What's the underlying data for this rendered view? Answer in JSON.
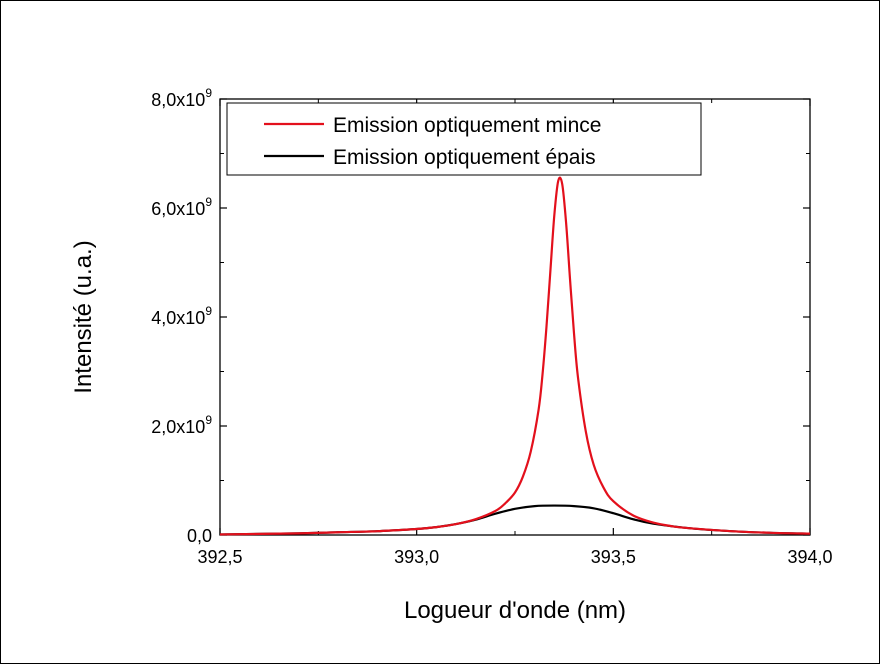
{
  "chart_data": {
    "type": "line",
    "title": "",
    "xlabel": "Logueur d'onde (nm)",
    "ylabel": "Intensité (u.a.)",
    "xlim": [
      392.5,
      394.0
    ],
    "ylim": [
      0,
      8000000000
    ],
    "grid": false,
    "legend_position": "top-left",
    "x_ticks": [
      {
        "value": 392.5,
        "label": "392,5"
      },
      {
        "value": 393.0,
        "label": "393,0"
      },
      {
        "value": 393.5,
        "label": "393,5"
      },
      {
        "value": 394.0,
        "label": "394,0"
      }
    ],
    "y_ticks": [
      {
        "value": 0,
        "mantissa": "0,0",
        "exponent": ""
      },
      {
        "value": 2000000000,
        "mantissa": "2,0x10",
        "exponent": "9"
      },
      {
        "value": 4000000000,
        "mantissa": "4,0x10",
        "exponent": "9"
      },
      {
        "value": 6000000000,
        "mantissa": "6,0x10",
        "exponent": "9"
      },
      {
        "value": 8000000000,
        "mantissa": "8,0x10",
        "exponent": "9"
      }
    ],
    "series": [
      {
        "name": "Emission optiquement mince",
        "color": "#e3101c",
        "x": [
          392.5,
          392.7,
          392.8,
          392.9,
          393.0,
          393.05,
          393.1,
          393.15,
          393.2,
          393.225,
          393.25,
          393.27,
          393.29,
          393.31,
          393.32,
          393.33,
          393.34,
          393.35,
          393.36,
          393.37,
          393.38,
          393.39,
          393.4,
          393.41,
          393.43,
          393.45,
          393.475,
          393.5,
          393.55,
          393.6,
          393.65,
          393.7,
          393.8,
          393.9,
          394.0
        ],
        "y": [
          10000000,
          30000000,
          50000000,
          70000000,
          110000000,
          145000000,
          200000000,
          290000000,
          440000000,
          580000000,
          780000000,
          1070000000,
          1530000000,
          2300000000,
          2950000000,
          3820000000,
          4850000000,
          5870000000,
          6500000000,
          6440000000,
          5720000000,
          4680000000,
          3700000000,
          2900000000,
          1900000000,
          1290000000,
          870000000,
          620000000,
          360000000,
          230000000,
          160000000,
          120000000,
          70000000,
          40000000,
          25000000
        ]
      },
      {
        "name": "Emission optiquement épais",
        "color": "#000000",
        "x": [
          392.5,
          392.7,
          392.8,
          392.9,
          393.0,
          393.05,
          393.1,
          393.15,
          393.2,
          393.25,
          393.3,
          393.35,
          393.4,
          393.45,
          393.5,
          393.55,
          393.6,
          393.7,
          393.8,
          393.9,
          394.0
        ],
        "y": [
          10000000,
          30000000,
          50000000,
          70000000,
          110000000,
          145000000,
          200000000,
          280000000,
          390000000,
          480000000,
          530000000,
          540000000,
          530000000,
          490000000,
          400000000,
          290000000,
          210000000,
          120000000,
          70000000,
          40000000,
          25000000
        ]
      }
    ]
  }
}
